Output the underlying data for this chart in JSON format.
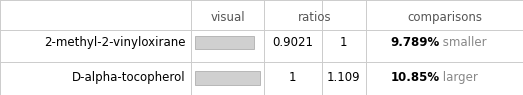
{
  "title_row": [
    "",
    "visual",
    "ratios",
    "",
    "comparisons"
  ],
  "rows": [
    {
      "name": "2-methyl-2-vinyloxirane",
      "bar_value": 0.9021,
      "ratio1": "0.9021",
      "ratio2": "1",
      "comparison_pct": "9.789%",
      "comparison_word": " smaller",
      "comparison_color": "#888888"
    },
    {
      "name": "D-alpha-tocopherol",
      "bar_value": 1.0,
      "ratio1": "1",
      "ratio2": "1.109",
      "comparison_pct": "10.85%",
      "comparison_word": " larger",
      "comparison_color": "#888888"
    }
  ],
  "bar_max": 1.0,
  "bar_color": "#d0d0d0",
  "bar_border_color": "#b0b0b0",
  "header_color": "#555555",
  "name_color": "#000000",
  "pct_color": "#000000",
  "bg_color": "#ffffff",
  "grid_color": "#cccccc",
  "font_size": 8.5,
  "header_font_size": 8.5
}
